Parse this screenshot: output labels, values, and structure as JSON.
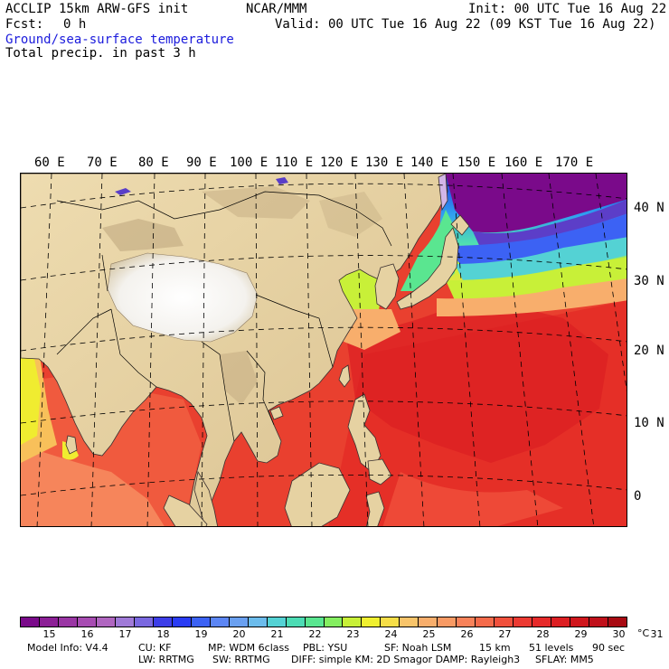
{
  "header": {
    "model_title": "ACCLIP 15km ARW-GFS init",
    "org": "NCAR/MMM",
    "init": "Init: 00 UTC Tue 16 Aug 22",
    "fcst_label": "Fcst:",
    "fcst_value": "0 h",
    "valid": "Valid: 00 UTC Tue 16 Aug 22 (09 KST Tue 16 Aug 22)",
    "field_1": "Ground/sea-surface temperature",
    "field_2": "Total precip. in past 3 h"
  },
  "map": {
    "longitude_labels": [
      "60 E",
      "70 E",
      "80 E",
      "90 E",
      "100 E",
      "110 E",
      "120 E",
      "130 E",
      "140 E",
      "150 E",
      "160 E",
      "170 E"
    ],
    "latitude_labels": [
      "40 N",
      "30 N",
      "20 N",
      "10 N",
      "0"
    ]
  },
  "colorbar": {
    "unit": "°C",
    "labels": [
      "15",
      "16",
      "17",
      "18",
      "19",
      "20",
      "21",
      "22",
      "23",
      "24",
      "25",
      "26",
      "27",
      "28",
      "29",
      "30",
      "31"
    ],
    "colors": [
      "#7a0a8a",
      "#8c1f96",
      "#9a36a4",
      "#a74cb2",
      "#b066c0",
      "#a07ad8",
      "#7a68e0",
      "#3d3ee8",
      "#2a3cf4",
      "#3c62f4",
      "#5c86f4",
      "#6aa0f0",
      "#6cbcec",
      "#54d2d4",
      "#4cdcb4",
      "#5ae690",
      "#84ee60",
      "#c8f038",
      "#f0f030",
      "#f6de48",
      "#f8c46a",
      "#f8ae6c",
      "#f89a64",
      "#f8825a",
      "#f46a4a",
      "#f0503c",
      "#ec3a32",
      "#e62a2a",
      "#dc1e22",
      "#d0161c",
      "#c0101a",
      "#a80a12"
    ]
  },
  "model_info": {
    "line_1": [
      {
        "label": "Model Info: V4.4"
      },
      {
        "label": "CU: KF"
      },
      {
        "label": "MP: WDM 6class"
      },
      {
        "label": "PBL: YSU"
      },
      {
        "label": "SF: Noah LSM"
      },
      {
        "label": "15 km"
      },
      {
        "label": "51 levels"
      },
      {
        "label": "90 sec"
      }
    ],
    "line_2": [
      {
        "label": "LW: RRTMG"
      },
      {
        "label": "SW: RRTMG"
      },
      {
        "label": "DIFF: simple KM: 2D Smagor DAMP: Rayleigh3"
      },
      {
        "label": "SFLAY: MM5"
      }
    ]
  }
}
